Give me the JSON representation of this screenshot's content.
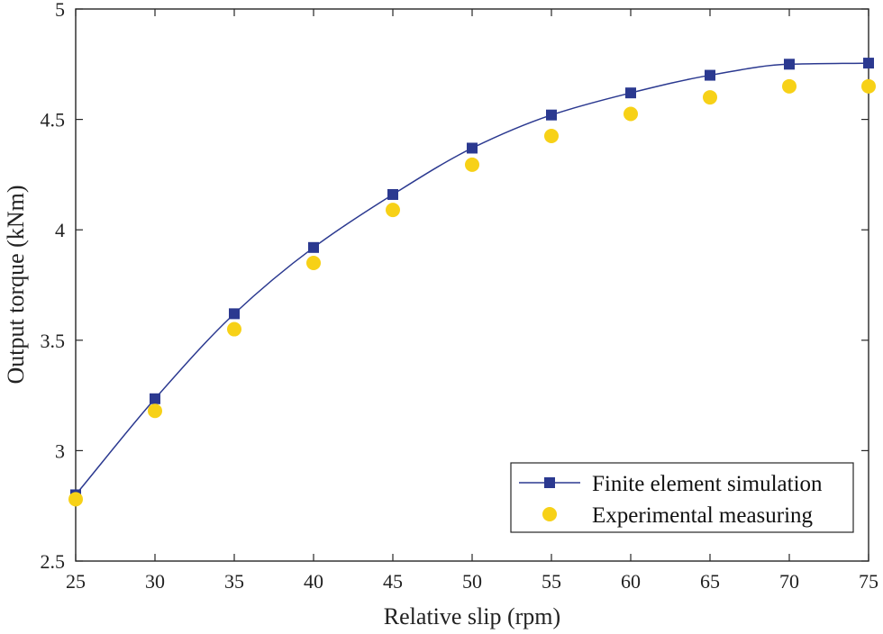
{
  "chart_data": {
    "type": "line",
    "title": "",
    "xlabel": "Relative slip (rpm)",
    "ylabel": "Output torque (kNm)",
    "xlim": [
      25,
      75
    ],
    "ylim": [
      2.5,
      5
    ],
    "xticks": [
      25,
      30,
      35,
      40,
      45,
      50,
      55,
      60,
      65,
      70,
      75
    ],
    "yticks": [
      2.5,
      3,
      3.5,
      4,
      4.5,
      5
    ],
    "xtick_labels": [
      "25",
      "30",
      "35",
      "40",
      "45",
      "50",
      "55",
      "60",
      "65",
      "70",
      "75"
    ],
    "ytick_labels": [
      "2.5",
      "3",
      "3.5",
      "4",
      "4.5",
      "5"
    ],
    "grid": false,
    "legend_position": "bottom-right",
    "x": [
      25,
      30,
      35,
      40,
      45,
      50,
      55,
      60,
      65,
      70,
      75
    ],
    "series": [
      {
        "name": "Finite element simulation",
        "values": [
          2.8,
          3.235,
          3.62,
          3.92,
          4.16,
          4.37,
          4.52,
          4.62,
          4.7,
          4.75,
          4.755
        ],
        "color": "#2b3990",
        "marker": "square",
        "line": true
      },
      {
        "name": "Experimental measuring",
        "values": [
          2.78,
          3.18,
          3.55,
          3.85,
          4.09,
          4.295,
          4.425,
          4.525,
          4.6,
          4.65,
          4.65
        ],
        "color": "#f7d117",
        "marker": "circle",
        "line": false
      }
    ]
  }
}
